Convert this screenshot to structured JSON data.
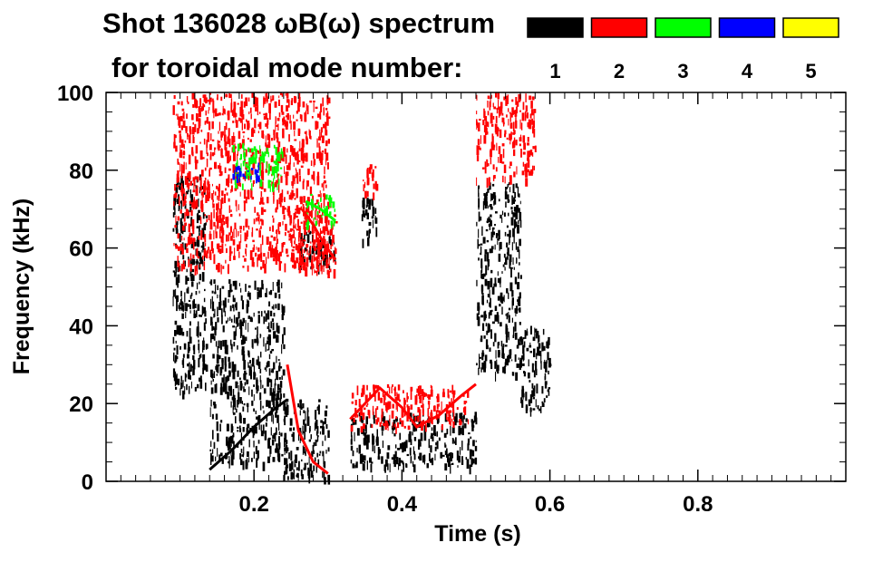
{
  "chart_data": {
    "type": "heatmap",
    "title": "Shot 136028 ωB(ω) spectrum",
    "subtitle": "for toroidal mode number:",
    "xlabel": "Time (s)",
    "ylabel": "Frequency (kHz)",
    "xlim": [
      0.0,
      1.0
    ],
    "ylim": [
      0,
      100
    ],
    "x_ticks": [
      0.2,
      0.4,
      0.6,
      0.8
    ],
    "x_tick_labels": [
      "0.2",
      "0.4",
      "0.6",
      "0.8"
    ],
    "y_ticks": [
      0,
      20,
      40,
      60,
      80,
      100
    ],
    "y_tick_labels": [
      "0",
      "20",
      "40",
      "60",
      "80",
      "100"
    ],
    "legend_placement": "top-right",
    "legend": [
      {
        "label": "1",
        "color": "#000000"
      },
      {
        "label": "2",
        "color": "#ff0000"
      },
      {
        "label": "3",
        "color": "#00ff00"
      },
      {
        "label": "4",
        "color": "#0000ff"
      },
      {
        "label": "5",
        "color": "#ffff00"
      }
    ],
    "grid": false,
    "regions": [
      {
        "n": 1,
        "t": [
          0.09,
          0.135
        ],
        "f": [
          23,
          80
        ],
        "color": "#000000"
      },
      {
        "n": 1,
        "t": [
          0.14,
          0.24
        ],
        "f": [
          5,
          52
        ],
        "color": "#000000"
      },
      {
        "n": 1,
        "t": [
          0.24,
          0.3
        ],
        "f": [
          1,
          22
        ],
        "color": "#000000"
      },
      {
        "n": 1,
        "t": [
          0.26,
          0.31
        ],
        "f": [
          55,
          65
        ],
        "color": "#000000"
      },
      {
        "n": 1,
        "t": [
          0.33,
          0.5
        ],
        "f": [
          4,
          18
        ],
        "color": "#000000"
      },
      {
        "n": 1,
        "t": [
          0.345,
          0.365
        ],
        "f": [
          62,
          75
        ],
        "color": "#000000"
      },
      {
        "n": 1,
        "t": [
          0.5,
          0.56
        ],
        "f": [
          28,
          77
        ],
        "color": "#000000"
      },
      {
        "n": 1,
        "t": [
          0.56,
          0.6
        ],
        "f": [
          18,
          40
        ],
        "color": "#000000"
      },
      {
        "n": 2,
        "t": [
          0.09,
          0.3
        ],
        "f": [
          55,
          100
        ],
        "color": "#ff0000"
      },
      {
        "n": 2,
        "t": [
          0.25,
          0.31
        ],
        "f": [
          54,
          72
        ],
        "color": "#ff0000"
      },
      {
        "n": 2,
        "t": [
          0.345,
          0.365
        ],
        "f": [
          74,
          82
        ],
        "color": "#ff0000"
      },
      {
        "n": 2,
        "t": [
          0.33,
          0.49
        ],
        "f": [
          14,
          25
        ],
        "color": "#ff0000"
      },
      {
        "n": 2,
        "t": [
          0.5,
          0.58
        ],
        "f": [
          78,
          100
        ],
        "color": "#ff0000"
      },
      {
        "n": 3,
        "t": [
          0.17,
          0.24
        ],
        "f": [
          76,
          87
        ],
        "color": "#00ff00"
      },
      {
        "n": 3,
        "t": [
          0.27,
          0.31
        ],
        "f": [
          66,
          74
        ],
        "color": "#00ff00"
      },
      {
        "n": 4,
        "t": [
          0.17,
          0.21
        ],
        "f": [
          78,
          82
        ],
        "color": "#0000ff"
      }
    ],
    "ridges": [
      {
        "n": 2,
        "color": "#ff0000",
        "points": [
          [
            0.33,
            16
          ],
          [
            0.36,
            22
          ],
          [
            0.37,
            24
          ],
          [
            0.4,
            19
          ],
          [
            0.42,
            14
          ],
          [
            0.45,
            17
          ],
          [
            0.48,
            22
          ],
          [
            0.5,
            25
          ]
        ]
      },
      {
        "n": 1,
        "color": "#000000",
        "points": [
          [
            0.14,
            3
          ],
          [
            0.17,
            8
          ],
          [
            0.2,
            14
          ],
          [
            0.23,
            19
          ],
          [
            0.245,
            21
          ]
        ]
      },
      {
        "n": 2,
        "color": "#ff0000",
        "points": [
          [
            0.265,
            70
          ],
          [
            0.28,
            66
          ],
          [
            0.295,
            61
          ],
          [
            0.31,
            57
          ]
        ]
      },
      {
        "n": 3,
        "color": "#00ff00",
        "points": [
          [
            0.27,
            72
          ],
          [
            0.29,
            70
          ],
          [
            0.31,
            67
          ]
        ]
      },
      {
        "n": 2,
        "color": "#ff0000",
        "points": [
          [
            0.245,
            30
          ],
          [
            0.26,
            13
          ],
          [
            0.28,
            5
          ],
          [
            0.3,
            2
          ]
        ]
      }
    ]
  }
}
